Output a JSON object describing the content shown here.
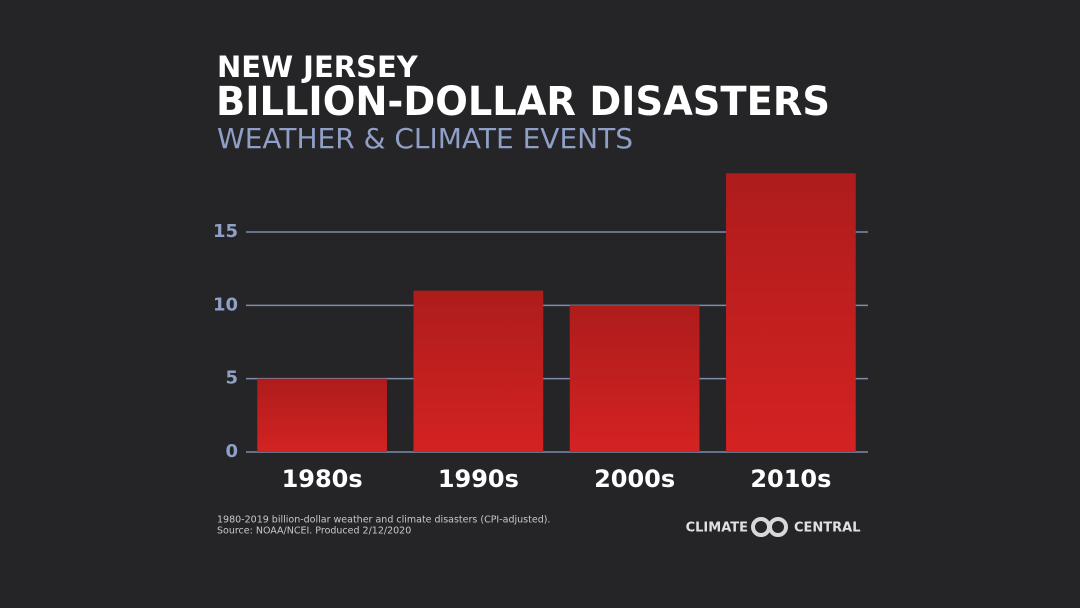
{
  "chart_data": {
    "type": "bar",
    "supertitle": "NEW JERSEY",
    "title": "BILLION-DOLLAR DISASTERS",
    "subtitle": "WEATHER & CLIMATE EVENTS",
    "categories": [
      "1980s",
      "1990s",
      "2000s",
      "2010s"
    ],
    "values": [
      5,
      11,
      10,
      19
    ],
    "color": "#d42222",
    "ylim": [
      0,
      19
    ],
    "yticks": [
      0,
      5,
      10,
      15
    ],
    "grid": true,
    "footnote": [
      "1980-2019 billion-dollar weather and climate disasters (CPI-adjusted).",
      "Source: NOAA/NCEI. Produced 2/12/2020"
    ],
    "logo": [
      "CLIMATE",
      "CENTRAL"
    ]
  }
}
